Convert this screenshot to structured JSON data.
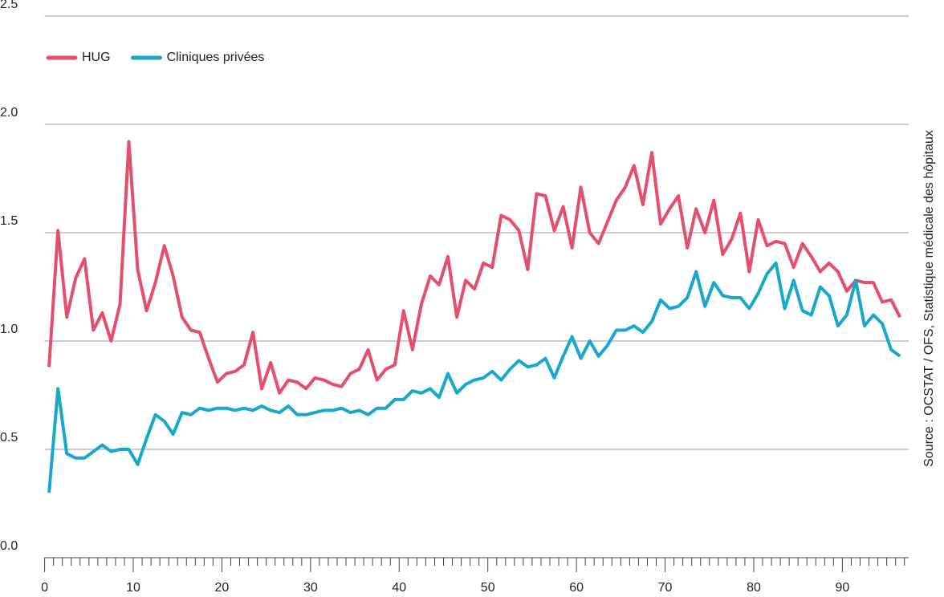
{
  "chart_data": {
    "type": "line",
    "x": [
      0.5,
      1.5,
      2.5,
      3.5,
      4.5,
      5.5,
      6.5,
      7.5,
      8.5,
      9.5,
      10.5,
      11.5,
      12.5,
      13.5,
      14.5,
      15.5,
      16.5,
      17.5,
      18.5,
      19.5,
      20.5,
      21.5,
      22.5,
      23.5,
      24.5,
      25.5,
      26.5,
      27.5,
      28.5,
      29.5,
      30.5,
      31.5,
      32.5,
      33.5,
      34.5,
      35.5,
      36.5,
      37.5,
      38.5,
      39.5,
      40.5,
      41.5,
      42.5,
      43.5,
      44.5,
      45.5,
      46.5,
      47.5,
      48.5,
      49.5,
      50.5,
      51.5,
      52.5,
      53.5,
      54.5,
      55.5,
      56.5,
      57.5,
      58.5,
      59.5,
      60.5,
      61.5,
      62.5,
      63.5,
      64.5,
      65.5,
      66.5,
      67.5,
      68.5,
      69.5,
      70.5,
      71.5,
      72.5,
      73.5,
      74.5,
      75.5,
      76.5,
      77.5,
      78.5,
      79.5,
      80.5,
      81.5,
      82.5,
      83.5,
      84.5,
      85.5,
      86.5,
      87.5,
      88.5,
      89.5,
      90.5,
      91.5,
      92.5,
      93.5,
      94.5,
      95.5,
      96.5
    ],
    "series": [
      {
        "name": "HUG",
        "color": "#e54f6e",
        "values": [
          0.88,
          1.51,
          1.11,
          1.29,
          1.38,
          1.05,
          1.13,
          1.0,
          1.17,
          1.92,
          1.33,
          1.14,
          1.27,
          1.44,
          1.3,
          1.11,
          1.05,
          1.04,
          0.92,
          0.81,
          0.85,
          0.86,
          0.89,
          1.04,
          0.78,
          0.9,
          0.76,
          0.82,
          0.81,
          0.78,
          0.83,
          0.82,
          0.8,
          0.79,
          0.85,
          0.87,
          0.96,
          0.82,
          0.87,
          0.89,
          1.14,
          0.96,
          1.17,
          1.3,
          1.26,
          1.39,
          1.11,
          1.28,
          1.24,
          1.36,
          1.34,
          1.58,
          1.56,
          1.51,
          1.33,
          1.68,
          1.67,
          1.51,
          1.62,
          1.43,
          1.71,
          1.5,
          1.45,
          1.55,
          1.65,
          1.71,
          1.81,
          1.63,
          1.87,
          1.54,
          1.61,
          1.67,
          1.43,
          1.61,
          1.5,
          1.65,
          1.4,
          1.47,
          1.59,
          1.32,
          1.56,
          1.44,
          1.46,
          1.45,
          1.34,
          1.45,
          1.39,
          1.32,
          1.36,
          1.32,
          1.23,
          1.28,
          1.27,
          1.27,
          1.18,
          1.19,
          1.11
        ]
      },
      {
        "name": "Cliniques privées",
        "color": "#17a8cc",
        "values": [
          0.3,
          0.78,
          0.48,
          0.46,
          0.46,
          0.49,
          0.52,
          0.49,
          0.5,
          0.5,
          0.43,
          0.55,
          0.66,
          0.63,
          0.57,
          0.67,
          0.66,
          0.69,
          0.68,
          0.69,
          0.69,
          0.68,
          0.69,
          0.68,
          0.7,
          0.68,
          0.67,
          0.7,
          0.66,
          0.66,
          0.67,
          0.68,
          0.68,
          0.69,
          0.67,
          0.68,
          0.66,
          0.69,
          0.69,
          0.73,
          0.73,
          0.77,
          0.76,
          0.78,
          0.74,
          0.85,
          0.76,
          0.8,
          0.82,
          0.83,
          0.86,
          0.82,
          0.87,
          0.91,
          0.88,
          0.89,
          0.92,
          0.83,
          0.93,
          1.02,
          0.92,
          1.0,
          0.93,
          0.98,
          1.05,
          1.05,
          1.07,
          1.04,
          1.09,
          1.19,
          1.15,
          1.16,
          1.2,
          1.32,
          1.16,
          1.27,
          1.21,
          1.2,
          1.2,
          1.15,
          1.22,
          1.31,
          1.36,
          1.15,
          1.28,
          1.14,
          1.12,
          1.25,
          1.21,
          1.07,
          1.12,
          1.28,
          1.07,
          1.12,
          1.08,
          0.96,
          0.93
        ]
      }
    ],
    "xlim": [
      0,
      97.3
    ],
    "xticks": [
      0,
      10,
      20,
      30,
      40,
      50,
      60,
      70,
      80,
      90
    ],
    "xminorticks": [
      1,
      2,
      3,
      4,
      5,
      6,
      7,
      8,
      9,
      11,
      12,
      13,
      14,
      15,
      16,
      17,
      18,
      19,
      21,
      22,
      23,
      24,
      25,
      26,
      27,
      28,
      29,
      31,
      32,
      33,
      34,
      35,
      36,
      37,
      38,
      39,
      41,
      42,
      43,
      44,
      45,
      46,
      47,
      48,
      49,
      51,
      52,
      53,
      54,
      55,
      56,
      57,
      58,
      59,
      61,
      62,
      63,
      64,
      65,
      66,
      67,
      68,
      69,
      71,
      72,
      73,
      74,
      75,
      76,
      77,
      78,
      79,
      81,
      82,
      83,
      84,
      85,
      86,
      87,
      88,
      89,
      91,
      92,
      93,
      94,
      95,
      96,
      97
    ],
    "ylim": [
      0,
      2.5
    ],
    "yticks": [
      {
        "value": 0,
        "label": "0.0"
      },
      0.5,
      {
        "value": 1,
        "label": "1.0"
      },
      1.5,
      {
        "value": 2,
        "label": "2.0"
      },
      2.5
    ],
    "grid": true,
    "legend": "top-left",
    "source": "Source : OCSTAT / OFS, Statistique médicale des hôpitaux"
  }
}
